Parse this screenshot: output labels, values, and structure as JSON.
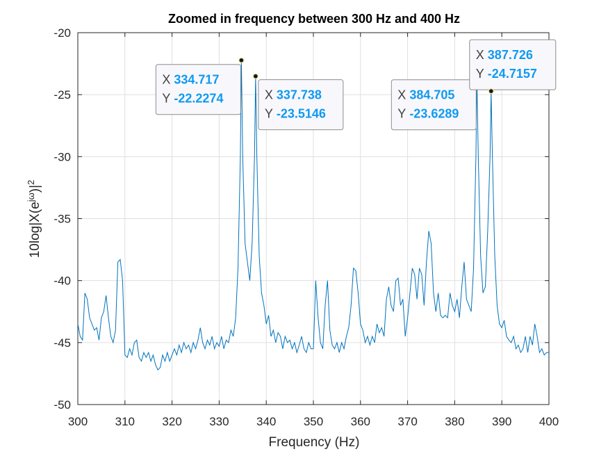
{
  "chart_data": {
    "type": "line",
    "title": "Zoomed in frequency between 300 Hz and 400 Hz",
    "xlabel": "Frequency (Hz)",
    "ylabel_parts": [
      {
        "text": "10log|X(e"
      },
      {
        "text": "jω",
        "sup": true
      },
      {
        "text": ")|"
      },
      {
        "text": "2",
        "sup": true
      }
    ],
    "xlim": [
      300,
      400
    ],
    "ylim": [
      -50,
      -20
    ],
    "xticks": [
      300,
      310,
      320,
      330,
      340,
      350,
      360,
      370,
      380,
      390,
      400
    ],
    "yticks": [
      -50,
      -45,
      -40,
      -35,
      -30,
      -25,
      -20
    ],
    "grid": true,
    "color": "#0072bd",
    "x": [
      300,
      300.5,
      301,
      301.5,
      302,
      302.5,
      303,
      303.5,
      304,
      304.5,
      305,
      305.5,
      306,
      306.5,
      307,
      307.5,
      308,
      308.5,
      309,
      309.5,
      310,
      310.5,
      311,
      311.5,
      312,
      312.5,
      313,
      313.5,
      314,
      314.5,
      315,
      315.5,
      316,
      316.5,
      317,
      317.5,
      318,
      318.5,
      319,
      319.5,
      320,
      320.5,
      321,
      321.5,
      322,
      322.5,
      323,
      323.5,
      324,
      324.5,
      325,
      325.5,
      326,
      326.5,
      327,
      327.5,
      328,
      328.5,
      329,
      329.5,
      330,
      330.5,
      331,
      331.5,
      332,
      332.5,
      333,
      333.5,
      334,
      334.5,
      334.717,
      335,
      335.5,
      336,
      336.5,
      337,
      337.5,
      337.738,
      338,
      338.5,
      339,
      339.5,
      340,
      340.5,
      341,
      341.5,
      342,
      342.5,
      343,
      343.5,
      344,
      344.5,
      345,
      345.5,
      346,
      346.5,
      347,
      347.5,
      348,
      348.5,
      349,
      349.5,
      350,
      350.5,
      351,
      351.5,
      352,
      352.5,
      353,
      353.5,
      354,
      354.5,
      355,
      355.5,
      356,
      356.5,
      357,
      357.5,
      358,
      358.5,
      359,
      359.5,
      360,
      360.5,
      361,
      361.5,
      362,
      362.5,
      363,
      363.5,
      364,
      364.5,
      365,
      365.5,
      366,
      366.5,
      367,
      367.5,
      368,
      368.5,
      369,
      369.5,
      370,
      370.5,
      371,
      371.5,
      372,
      372.5,
      373,
      373.5,
      374,
      374.5,
      375,
      375.5,
      376,
      376.5,
      377,
      377.5,
      378,
      378.5,
      379,
      379.5,
      380,
      380.5,
      381,
      381.5,
      382,
      382.5,
      383,
      383.5,
      384,
      384.5,
      384.705,
      385,
      385.5,
      386,
      386.5,
      387,
      387.5,
      387.726,
      388,
      388.5,
      389,
      389.5,
      390,
      390.5,
      391,
      391.5,
      392,
      392.5,
      393,
      393.5,
      394,
      394.5,
      395,
      395.5,
      396,
      396.5,
      397,
      397.5,
      398,
      398.5,
      399,
      399.5,
      400
    ],
    "values": [
      -43.5,
      -44.5,
      -44.8,
      -41,
      -41.5,
      -43,
      -43.5,
      -44,
      -43.8,
      -44.8,
      -43,
      -42.5,
      -41.2,
      -43,
      -44.5,
      -45,
      -44,
      -38.5,
      -38.3,
      -40,
      -46,
      -46.2,
      -45.5,
      -46,
      -45,
      -44.8,
      -46.2,
      -46.5,
      -45.8,
      -46.2,
      -45.8,
      -46.5,
      -46,
      -46.8,
      -47.2,
      -47,
      -46,
      -46.5,
      -45.8,
      -46.5,
      -46,
      -45.5,
      -46,
      -45.2,
      -45.8,
      -45,
      -45.5,
      -45.2,
      -45.8,
      -45,
      -45.5,
      -44.8,
      -43.8,
      -45,
      -45.5,
      -44.8,
      -45.2,
      -44.5,
      -45.5,
      -45,
      -45.3,
      -44.5,
      -45.5,
      -44.8,
      -45,
      -44,
      -44.5,
      -43,
      -39,
      -30,
      -22.2274,
      -30,
      -37,
      -38.5,
      -40,
      -37,
      -30,
      -23.5146,
      -30,
      -38,
      -41,
      -42,
      -43.5,
      -42.8,
      -44.5,
      -44,
      -45,
      -44.2,
      -44.5,
      -45.5,
      -44.5,
      -45,
      -44.8,
      -45.5,
      -45,
      -45.8,
      -45.2,
      -44.5,
      -45.5,
      -45.8,
      -45,
      -45.5,
      -45.5,
      -40,
      -43,
      -45,
      -45.5,
      -42,
      -40,
      -44,
      -45.2,
      -45.5,
      -45,
      -45.8,
      -45,
      -45.5,
      -44.5,
      -43.8,
      -42,
      -39,
      -39.2,
      -41,
      -43.5,
      -44,
      -45,
      -44.5,
      -45.2,
      -44.5,
      -45,
      -43.5,
      -44.2,
      -43.8,
      -44.5,
      -41.5,
      -40.5,
      -42,
      -42.5,
      -40,
      -39.8,
      -42,
      -41.5,
      -44.5,
      -43,
      -41,
      -39,
      -39.5,
      -41.5,
      -39,
      -39.5,
      -42,
      -38.5,
      -36,
      -37,
      -41,
      -42.5,
      -41,
      -42.8,
      -43,
      -42.8,
      -43,
      -41,
      -42,
      -42.5,
      -41.5,
      -43,
      -40.5,
      -38.5,
      -41.5,
      -42,
      -42.5,
      -39,
      -30,
      -23.6289,
      -30,
      -38,
      -41,
      -40.5,
      -36,
      -30,
      -24.7157,
      -30,
      -38,
      -42,
      -43.5,
      -43.8,
      -43.2,
      -44.5,
      -44.8,
      -45,
      -44.5,
      -45.5,
      -45.2,
      -45.8,
      -45.5,
      -44.5,
      -45.8,
      -44.5,
      -45.2,
      -43.5,
      -44.5,
      -45.8,
      -45.5,
      -46,
      -45.8,
      -45.8
    ],
    "datatip_x_label": "X",
    "datatip_y_label": "Y",
    "datatips": [
      {
        "x": 334.717,
        "y": -22.2274
      },
      {
        "x": 337.738,
        "y": -23.5146
      },
      {
        "x": 384.705,
        "y": -23.6289
      },
      {
        "x": 387.726,
        "y": -24.7157
      }
    ]
  }
}
